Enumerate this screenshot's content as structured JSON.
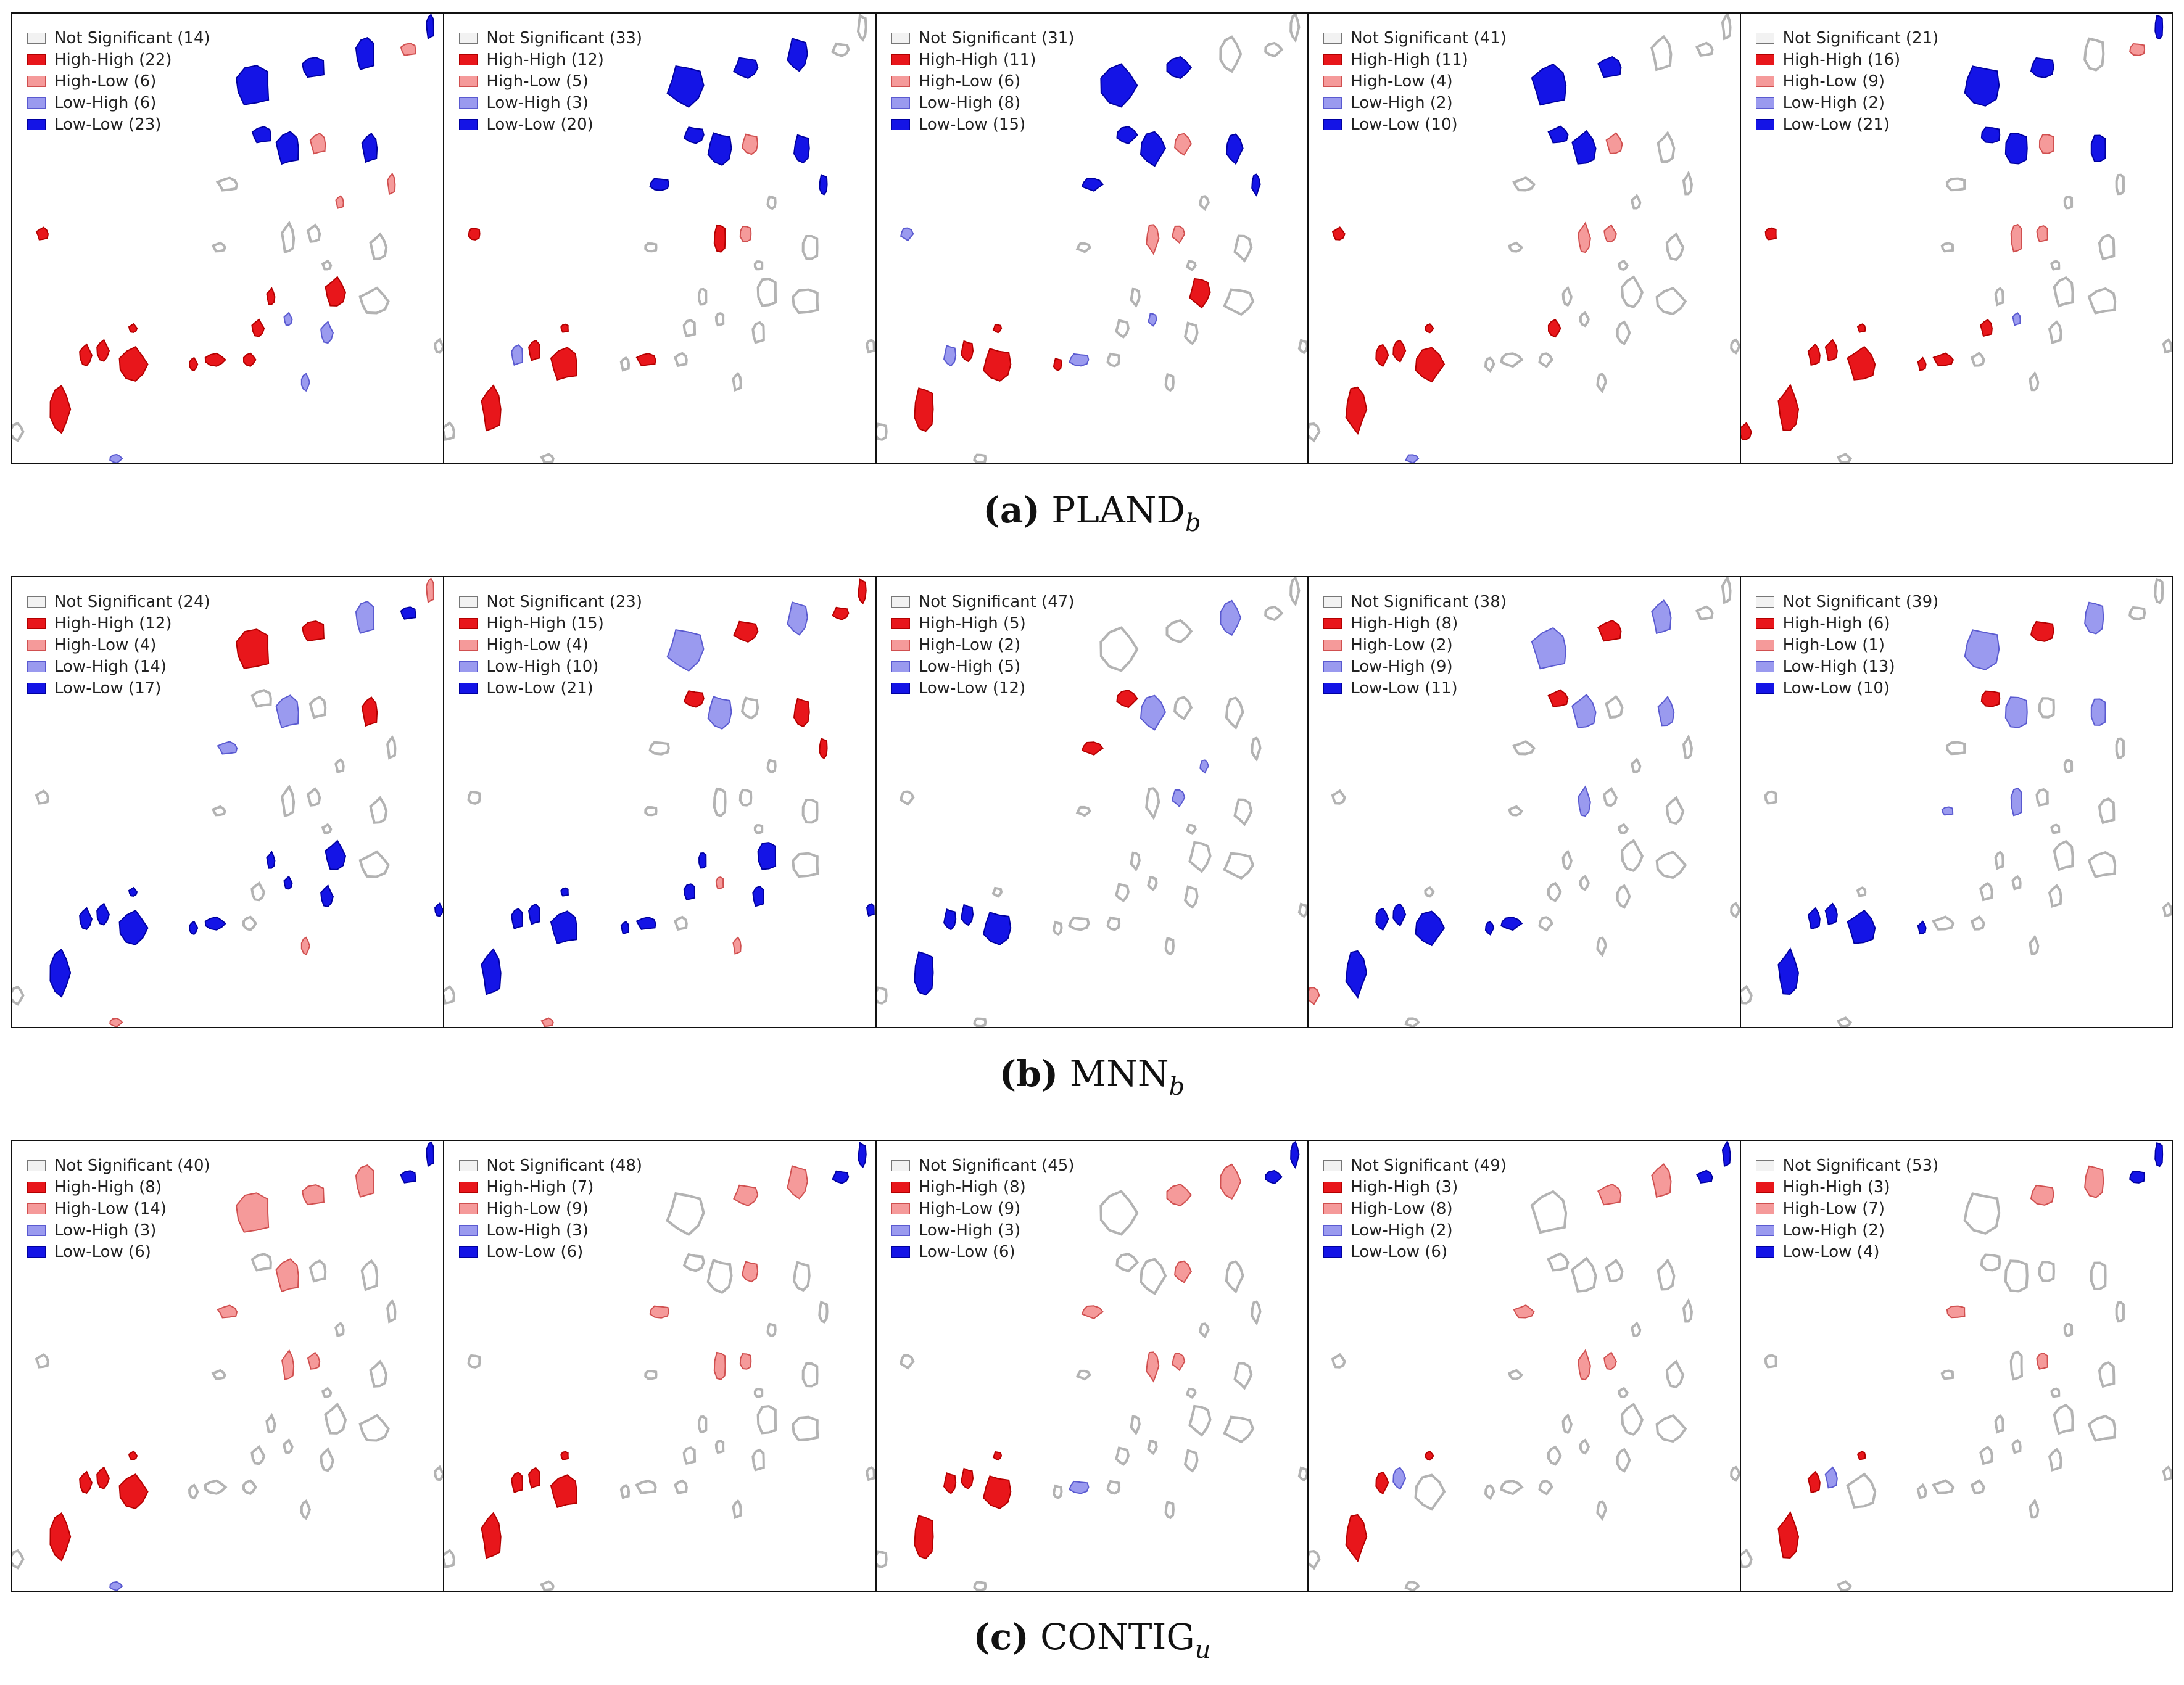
{
  "colors": {
    "not_significant": "#f2f2f2",
    "not_significant_stroke": "#b3b3b3",
    "high_high": "#e8161b",
    "high_high_stroke": "#b30000",
    "high_low": "#f59a9a",
    "high_low_stroke": "#d05050",
    "low_high": "#9a9aef",
    "low_high_stroke": "#5a5ad0",
    "low_low": "#1414e6",
    "low_low_stroke": "#0000a0"
  },
  "rows": [
    {
      "caption": {
        "label": "(a)",
        "metric": "PLAND",
        "subscript": "b"
      },
      "panels": [
        {
          "legend": [
            "Not Significant (14)",
            "High-High (22)",
            "High-Low (6)",
            "Low-High (6)",
            "Low-Low (23)"
          ]
        },
        {
          "legend": [
            "Not Significant (33)",
            "High-High (12)",
            "High-Low (5)",
            "Low-High (3)",
            "Low-Low (20)"
          ]
        },
        {
          "legend": [
            "Not Significant (31)",
            "High-High (11)",
            "High-Low (6)",
            "Low-High (8)",
            "Low-Low (15)"
          ]
        },
        {
          "legend": [
            "Not Significant (41)",
            "High-High (11)",
            "High-Low (4)",
            "Low-High (2)",
            "Low-Low (10)"
          ]
        },
        {
          "legend": [
            "Not Significant (21)",
            "High-High (16)",
            "High-Low (9)",
            "Low-High (2)",
            "Low-Low (21)"
          ]
        }
      ]
    },
    {
      "caption": {
        "label": "(b)",
        "metric": "MNN",
        "subscript": "b"
      },
      "panels": [
        {
          "legend": [
            "Not Significant (24)",
            "High-High (12)",
            "High-Low (4)",
            "Low-High (14)",
            "Low-Low (17)"
          ]
        },
        {
          "legend": [
            "Not Significant (23)",
            "High-High (15)",
            "High-Low (4)",
            "Low-High (10)",
            "Low-Low (21)"
          ]
        },
        {
          "legend": [
            "Not Significant (47)",
            "High-High (5)",
            "High-Low (2)",
            "Low-High (5)",
            "Low-Low (12)"
          ]
        },
        {
          "legend": [
            "Not Significant (38)",
            "High-High (8)",
            "High-Low (2)",
            "Low-High (9)",
            "Low-Low (11)"
          ]
        },
        {
          "legend": [
            "Not Significant (39)",
            "High-High (6)",
            "High-Low (1)",
            "Low-High (13)",
            "Low-Low (10)"
          ]
        }
      ]
    },
    {
      "caption": {
        "label": "(c)",
        "metric": "CONTIG",
        "subscript": "u"
      },
      "panels": [
        {
          "legend": [
            "Not Significant (40)",
            "High-High (8)",
            "High-Low (14)",
            "Low-High (3)",
            "Low-Low (6)"
          ]
        },
        {
          "legend": [
            "Not Significant (48)",
            "High-High (7)",
            "High-Low (9)",
            "Low-High (3)",
            "Low-Low (6)"
          ]
        },
        {
          "legend": [
            "Not Significant (45)",
            "High-High (8)",
            "High-Low (9)",
            "Low-High (3)",
            "Low-Low (6)"
          ]
        },
        {
          "legend": [
            "Not Significant (49)",
            "High-High (3)",
            "High-Low (8)",
            "Low-High (2)",
            "Low-Low (6)"
          ]
        },
        {
          "legend": [
            "Not Significant (53)",
            "High-High (3)",
            "High-Low (7)",
            "Low-High (2)",
            "Low-Low (4)"
          ]
        }
      ]
    }
  ]
}
